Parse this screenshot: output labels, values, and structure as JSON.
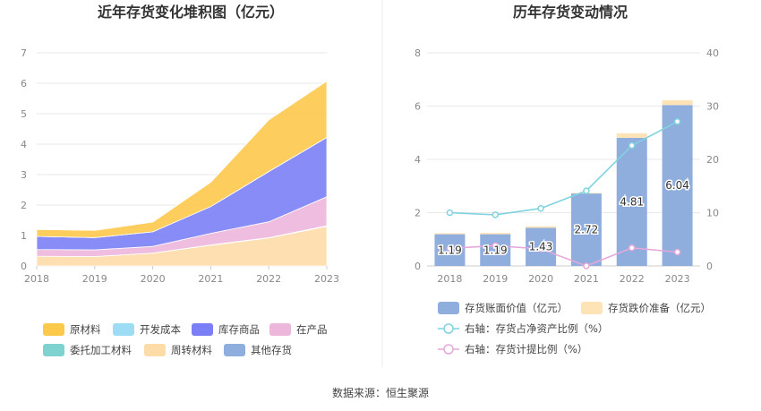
{
  "source": "数据来源：恒生聚源",
  "colors": {
    "raw": "#FDC94B",
    "dev": "#9DDCF5",
    "goods": "#7B7FF5",
    "wip": "#EDB6DB",
    "consign": "#7ED3D0",
    "turnover": "#FDDCA8",
    "other": "#8FAEDD",
    "bar": "#8FAEDD",
    "bar_top": "#FDE3B5",
    "line_ratio": "#7FD3E0",
    "line_provision": "#E6A8DB"
  },
  "chart_data": [
    {
      "type": "area",
      "stacked": true,
      "title": "近年存货变化堆积图（亿元）",
      "categories": [
        "2018",
        "2019",
        "2020",
        "2021",
        "2022",
        "2023"
      ],
      "ylim": [
        0,
        7
      ],
      "yticks": [
        0,
        1,
        2,
        3,
        4,
        5,
        6,
        7
      ],
      "series": [
        {
          "name": "周转材料",
          "key": "turnover",
          "values": [
            0.32,
            0.31,
            0.42,
            0.68,
            0.92,
            1.3
          ]
        },
        {
          "name": "委托加工材料",
          "key": "consign",
          "values": [
            0.0,
            0.0,
            0.0,
            0.01,
            0.01,
            0.02
          ]
        },
        {
          "name": "在产品",
          "key": "wip",
          "values": [
            0.22,
            0.22,
            0.22,
            0.38,
            0.52,
            0.95
          ]
        },
        {
          "name": "库存商品",
          "key": "goods",
          "values": [
            0.43,
            0.4,
            0.48,
            0.88,
            1.65,
            1.95
          ]
        },
        {
          "name": "开发成本",
          "key": "dev",
          "values": [
            0.0,
            0.0,
            0.0,
            0.0,
            0.0,
            0.0
          ]
        },
        {
          "name": "原材料",
          "key": "raw",
          "values": [
            0.23,
            0.24,
            0.32,
            0.8,
            1.7,
            1.85
          ]
        },
        {
          "name": "其他存货",
          "key": "other",
          "values": [
            0.0,
            0.0,
            0.0,
            0.0,
            0.0,
            0.0
          ]
        }
      ],
      "legend": [
        {
          "name": "原材料",
          "key": "raw"
        },
        {
          "name": "开发成本",
          "key": "dev"
        },
        {
          "name": "库存商品",
          "key": "goods"
        },
        {
          "name": "在产品",
          "key": "wip"
        },
        {
          "name": "委托加工材料",
          "key": "consign"
        },
        {
          "name": "周转材料",
          "key": "turnover"
        },
        {
          "name": "其他存货",
          "key": "other"
        }
      ]
    },
    {
      "type": "bar+line",
      "title": "历年存货变动情况",
      "categories": [
        "2018",
        "2019",
        "2020",
        "2021",
        "2022",
        "2023"
      ],
      "ylim_left": [
        0,
        8
      ],
      "yticks_left": [
        0,
        2,
        4,
        6,
        8
      ],
      "ylim_right": [
        0,
        40
      ],
      "yticks_right": [
        0,
        10,
        20,
        30,
        40
      ],
      "bars": {
        "name": "存货账面价值（亿元）",
        "values": [
          1.19,
          1.19,
          1.43,
          2.72,
          4.81,
          6.04
        ],
        "labels": [
          "1.19",
          "1.19",
          "1.43",
          "2.72",
          "4.81",
          "6.04"
        ]
      },
      "bars_top": {
        "name": "存货跌价准备（亿元）",
        "values": [
          0.04,
          0.05,
          0.06,
          0.02,
          0.17,
          0.18
        ]
      },
      "line_ratio": {
        "name": "右轴：存货占净资产比例（%）",
        "values": [
          10.0,
          9.6,
          10.8,
          14.1,
          22.6,
          27.1
        ]
      },
      "line_provision": {
        "name": "右轴：存货计提比例（%）",
        "values": [
          3.3,
          3.8,
          3.2,
          0.0,
          3.4,
          2.6
        ]
      }
    }
  ]
}
